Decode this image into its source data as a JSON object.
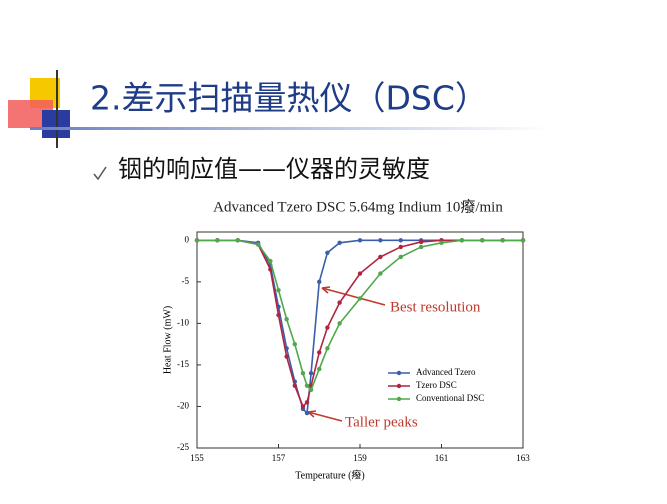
{
  "slide": {
    "title": "2.差示扫描量热仪（DSC）",
    "bullet": "铟的响应值——仪器的灵敏度"
  },
  "chart_data": {
    "type": "line",
    "title": "Advanced Tzero DSC 5.64mg Indium 10癈/min",
    "x_label": "Temperature (癈)",
    "y_label": "Heat Flow (mW)",
    "x": [
      155,
      155.5,
      156,
      156.5,
      156.8,
      157,
      157.2,
      157.4,
      157.6,
      157.7,
      157.8,
      158,
      158.2,
      158.5,
      159,
      159.5,
      160,
      160.5,
      161,
      161.5,
      162,
      162.5,
      163
    ],
    "series": [
      {
        "name": "Advanced Tzero",
        "color": "#3a5fa8",
        "values": [
          0,
          0,
          0,
          -0.3,
          -3,
          -8,
          -13,
          -17,
          -20.3,
          -20.8,
          -16,
          -5,
          -1.5,
          -0.3,
          0,
          0,
          0,
          0,
          0,
          0,
          0,
          0,
          0
        ]
      },
      {
        "name": "Tzero DSC",
        "color": "#b0243f",
        "values": [
          0,
          0,
          0,
          -0.5,
          -3.5,
          -9,
          -14,
          -17.5,
          -20,
          -19.5,
          -17.5,
          -13.5,
          -10.5,
          -7.5,
          -4,
          -2,
          -0.8,
          -0.2,
          0,
          0,
          0,
          0,
          0
        ]
      },
      {
        "name": "Conventional DSC",
        "color": "#4fa84a",
        "values": [
          0,
          0,
          0,
          -0.5,
          -2.5,
          -6,
          -9.5,
          -12.5,
          -16,
          -17.5,
          -18,
          -15.5,
          -13,
          -10,
          -7,
          -4,
          -2,
          -0.8,
          -0.3,
          0,
          0,
          0,
          0
        ]
      }
    ],
    "xlim": [
      155,
      163
    ],
    "xticks": [
      155,
      157,
      159,
      161,
      163
    ],
    "ylim": [
      -25,
      1
    ],
    "yticks": [
      0,
      -5,
      -10,
      -15,
      -20,
      -25
    ],
    "legend": "lower right",
    "annotations": [
      "Best resolution",
      "Taller peaks"
    ]
  }
}
